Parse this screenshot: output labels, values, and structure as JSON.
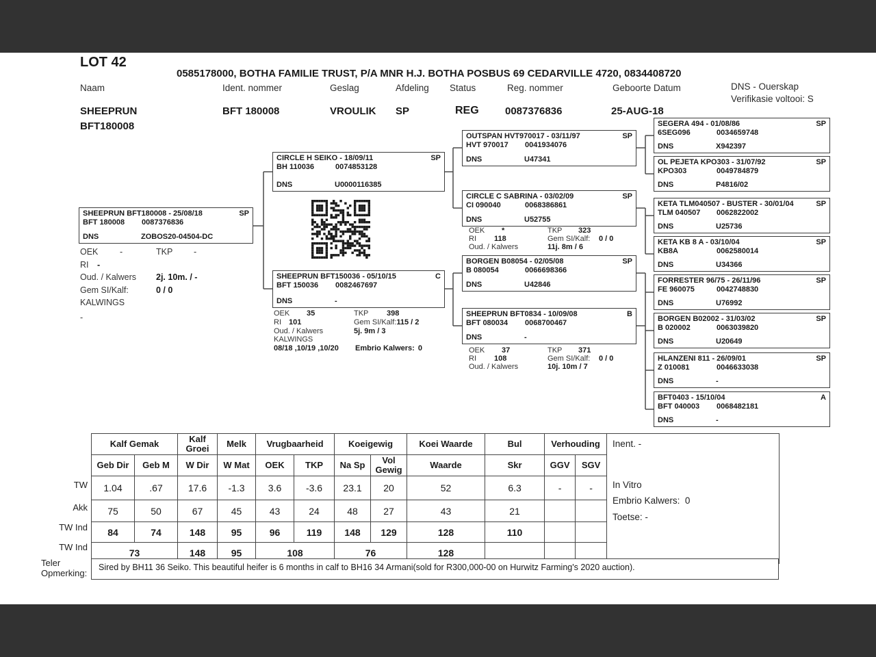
{
  "header": {
    "lot": "LOT 42",
    "breeder": "0585178000, BOTHA FAMILIE TRUST, P/A MNR H.J. BOTHA POSBUS 69 CEDARVILLE 4720, 0834408720",
    "col_naam": "Naam",
    "col_ident": "Ident. nommer",
    "col_geslag": "Geslag",
    "col_afdeling": "Afdeling",
    "col_status": "Status",
    "col_reg": "Reg. nommer",
    "col_geboorte": "Geboorte Datum",
    "col_dns": "DNS - Ouerskap",
    "col_verifikasie": "Verifikasie voltooi: S",
    "naam_line1": "SHEEPRUN",
    "naam_line2": "BFT180008",
    "ident": "BFT 180008",
    "geslag": "VROULIK",
    "afdeling": "SP",
    "status": "REG",
    "reg": "0087376836",
    "geboorte": "25-AUG-18"
  },
  "icons": {
    "qr": "qr-code"
  },
  "labels": {
    "dns": "DNS",
    "oek": "OEK",
    "tkp": "TKP",
    "ri": "RI",
    "oud": "Oud. / Kalwers",
    "gem": "Gem SI/Kalf:",
    "kalwings": "KALWINGS",
    "embrio": "Embrio Kalwers:"
  },
  "pedigree": {
    "subject": {
      "name": "SHEEPRUN BFT180008 - 25/08/18",
      "flag": "SP",
      "id1": "BFT 180008",
      "id2": "0087376836",
      "dns": "ZOBOS20-04504-DC",
      "stats": {
        "oek": "-",
        "tkp": "-",
        "ri": "-",
        "oud": "2j. 10m. / -",
        "gem": "0 / 0",
        "kalwings": "-"
      }
    },
    "sire": {
      "name": "CIRCLE H SEIKO - 18/09/11",
      "flag": "SP",
      "id1": "BH 110036",
      "id2": "0074853128",
      "dns": "U0000116385"
    },
    "dam": {
      "name": "SHEEPRUN BFT150036 - 05/10/15",
      "flag": "C",
      "id1": "BFT 150036",
      "id2": "0082467697",
      "dns": "-",
      "stats": {
        "oek": "35",
        "tkp": "398",
        "ri": "101",
        "gem": "115 / 2",
        "oud": "5j. 9m / 3",
        "kalwings": "08/18 ,10/19 ,10/20",
        "embrio": "0"
      }
    },
    "gp1": {
      "name": "OUTSPAN HVT970017 - 03/11/97",
      "flag": "SP",
      "id1": "HVT 970017",
      "id2": "0041934076",
      "dns": "U47341"
    },
    "gp2": {
      "name": "CIRCLE C SABRINA - 03/02/09",
      "flag": "SP",
      "id1": "CI 090040",
      "id2": "0068386861",
      "dns": "U52755",
      "stats": {
        "oek": "*",
        "tkp": "323",
        "ri": "118",
        "gem": "0 / 0",
        "oud": "11j. 8m / 6"
      }
    },
    "gp3": {
      "name": "BORGEN B08054 - 02/05/08",
      "flag": "SP",
      "id1": "B  080054",
      "id2": "0066698366",
      "dns": "U42846"
    },
    "gp4": {
      "name": "SHEEPRUN BFT0834 - 10/09/08",
      "flag": "B",
      "id1": "BFT 080034",
      "id2": "0068700467",
      "dns": "-",
      "stats": {
        "oek": "37",
        "tkp": "371",
        "ri": "108",
        "gem": "0 / 0",
        "oud": "10j. 10m / 7"
      }
    },
    "ggp1": {
      "name": "SEGERA 494 - 01/08/86",
      "flag": "SP",
      "id1": "6SEG096",
      "id2": "0034659748",
      "dns": "X942397"
    },
    "ggp2": {
      "name": "OL PEJETA KPO303 - 31/07/92",
      "flag": "SP",
      "id1": "KPO303",
      "id2": "0049784879",
      "dns": "P4816/02"
    },
    "ggp3": {
      "name": "KETA TLM040507 - BUSTER - 30/01/04",
      "flag": "SP",
      "id1": "TLM 040507",
      "id2": "0062822002",
      "dns": "U25736"
    },
    "ggp4": {
      "name": "KETA KB 8 A - 03/10/04",
      "flag": "SP",
      "id1": "KB8A",
      "id2": "0062580014",
      "dns": "U34366"
    },
    "ggp5": {
      "name": "FORRESTER 96/75 - 26/11/96",
      "flag": "SP",
      "id1": "FE  960075",
      "id2": "0042748830",
      "dns": "U76992"
    },
    "ggp6": {
      "name": "BORGEN B02002 - 31/03/02",
      "flag": "SP",
      "id1": "B  020002",
      "id2": "0063039820",
      "dns": "U20649"
    },
    "ggp7": {
      "name": "HLANZENI 811 - 26/09/01",
      "flag": "SP",
      "id1": "Z  010081",
      "id2": "0046633038",
      "dns": "-"
    },
    "ggp8": {
      "name": "BFT0403 - 15/10/04",
      "flag": "A",
      "id1": "BFT 040003",
      "id2": "0068482181",
      "dns": "-"
    }
  },
  "table": {
    "groups": [
      "Kalf Gemak",
      "Kalf Groei",
      "Melk",
      "Vrugbaarheid",
      "Koeigewig",
      "Koei Waarde",
      "Bul",
      "Verhouding"
    ],
    "subs": [
      "Geb Dir",
      "Geb M",
      "W Dir",
      "W Mat",
      "OEK",
      "TKP",
      "Na Sp",
      "Vol Gewig",
      "Waarde",
      "Skr",
      "GGV",
      "SGV"
    ],
    "row_labels": [
      "TW",
      "Akk",
      "TW Ind",
      "TW Ind"
    ],
    "tw": [
      "1.04",
      ".67",
      "17.6",
      "-1.3",
      "3.6",
      "-3.6",
      "23.1",
      "20",
      "52",
      "6.3",
      "-",
      "-"
    ],
    "akk": [
      "75",
      "50",
      "67",
      "45",
      "43",
      "24",
      "48",
      "27",
      "43",
      "21",
      "",
      ""
    ],
    "twind1": [
      "84",
      "74",
      "148",
      "95",
      "96",
      "119",
      "148",
      "129",
      "128",
      "110",
      "",
      ""
    ],
    "twind2": [
      "73",
      "148",
      "95",
      "108",
      "76",
      "128",
      "",
      "",
      ""
    ],
    "info": {
      "inent": "Inent. -",
      "invitro": "In Vitro",
      "embrio_label": "Embrio Kalwers:",
      "embrio_value": "0",
      "toetse": "Toetse: -"
    },
    "remark_label1": "Teler",
    "remark_label2": "Opmerking:",
    "remark": "Sired by BH11 36 Seiko.  This beautiful heifer is 6 months in calf to BH16 34 Armani(sold for R300,000-00 on Hurwitz Farming's 2020 auction)."
  }
}
